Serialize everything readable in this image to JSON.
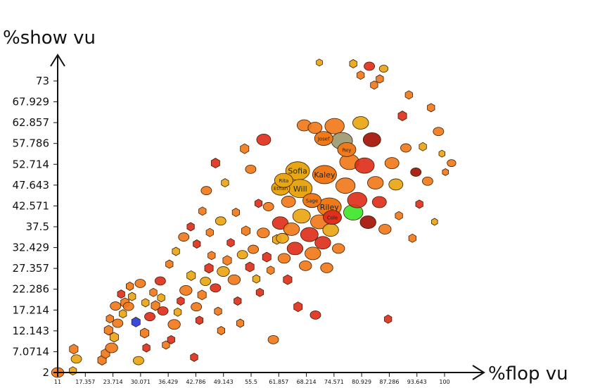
{
  "chart_data": {
    "type": "scatter",
    "xlabel": "%flop vu",
    "ylabel": "%show vu",
    "xlim": [
      11,
      104
    ],
    "ylim": [
      2,
      78
    ],
    "x_ticks": [
      "11",
      "17.357",
      "23.714",
      "30.071",
      "36.429",
      "42.786",
      "49.143",
      "55.5",
      "61.857",
      "68.214",
      "74.571",
      "80.929",
      "87.286",
      "93.643",
      "100"
    ],
    "y_ticks": [
      "2",
      "7.0714",
      "12.143",
      "17.214",
      "22.286",
      "27.357",
      "32.429",
      "37.5",
      "42.571",
      "47.643",
      "52.714",
      "57.786",
      "62.857",
      "67.929",
      "73"
    ],
    "colors": {
      "orange": "#f07a1a",
      "red": "#e0301c",
      "dark_red": "#a51208",
      "yellow": "#f2c418",
      "gold": "#e8a612",
      "blue": "#2a3bd8",
      "green": "#3ee62e",
      "olive": "#9c9a72",
      "outline": "#3a1a00"
    },
    "labeled_points": [
      {
        "x": 66.2,
        "y": 51.1,
        "label": "Sofia"
      },
      {
        "x": 72.4,
        "y": 50.2,
        "label": "Kaley"
      },
      {
        "x": 66.8,
        "y": 46.8,
        "label": "Will"
      },
      {
        "x": 73.5,
        "y": 42.3,
        "label": "Riley"
      },
      {
        "x": 72.2,
        "y": 59.0,
        "label": "Josef"
      },
      {
        "x": 62.3,
        "y": 46.9,
        "label": "Ethan"
      },
      {
        "x": 69.5,
        "y": 43.9,
        "label": "Sage"
      },
      {
        "x": 63.0,
        "y": 48.8,
        "label": "Rita"
      },
      {
        "x": 77.5,
        "y": 56.3,
        "label": "Rey"
      },
      {
        "x": 74.2,
        "y": 39.8,
        "label": "Cole"
      }
    ],
    "points": [
      {
        "x": 11,
        "y": 2,
        "c": "orange",
        "s": 7
      },
      {
        "x": 14.5,
        "y": 2.4,
        "c": "gold",
        "s": 6
      },
      {
        "x": 14.7,
        "y": 7.7,
        "c": "orange",
        "s": 7
      },
      {
        "x": 15.3,
        "y": 5.3,
        "c": "gold",
        "s": 6
      },
      {
        "x": 21.2,
        "y": 5.0,
        "c": "orange",
        "s": 7
      },
      {
        "x": 22.0,
        "y": 6.6,
        "c": "orange",
        "s": 7
      },
      {
        "x": 23.4,
        "y": 8.0,
        "c": "orange",
        "s": 7
      },
      {
        "x": 24.0,
        "y": 10.6,
        "c": "gold",
        "s": 7
      },
      {
        "x": 22.7,
        "y": 12.3,
        "c": "orange",
        "s": 7
      },
      {
        "x": 24.8,
        "y": 14.0,
        "c": "orange",
        "s": 6
      },
      {
        "x": 26.0,
        "y": 16.3,
        "c": "gold",
        "s": 6
      },
      {
        "x": 26.5,
        "y": 19.0,
        "c": "orange",
        "s": 7
      },
      {
        "x": 27.3,
        "y": 18.1,
        "c": "orange",
        "s": 6
      },
      {
        "x": 28.1,
        "y": 20.5,
        "c": "gold",
        "s": 6
      },
      {
        "x": 29.0,
        "y": 14.3,
        "c": "blue",
        "s": 7
      },
      {
        "x": 29.6,
        "y": 4.9,
        "c": "gold",
        "s": 6
      },
      {
        "x": 31.4,
        "y": 8.0,
        "c": "red",
        "s": 6
      },
      {
        "x": 31.0,
        "y": 11.6,
        "c": "orange",
        "s": 7
      },
      {
        "x": 32.2,
        "y": 15.6,
        "c": "red",
        "s": 6
      },
      {
        "x": 33.5,
        "y": 18.3,
        "c": "orange",
        "s": 7
      },
      {
        "x": 34.8,
        "y": 20.2,
        "c": "gold",
        "s": 6
      },
      {
        "x": 35.2,
        "y": 17.0,
        "c": "red",
        "s": 6
      },
      {
        "x": 35.9,
        "y": 8.7,
        "c": "orange",
        "s": 6
      },
      {
        "x": 37.1,
        "y": 10.0,
        "c": "red",
        "s": 6
      },
      {
        "x": 37.8,
        "y": 13.7,
        "c": "orange",
        "s": 7
      },
      {
        "x": 38.6,
        "y": 16.7,
        "c": "gold",
        "s": 6
      },
      {
        "x": 39.3,
        "y": 19.4,
        "c": "red",
        "s": 6
      },
      {
        "x": 40.5,
        "y": 22.0,
        "c": "orange",
        "s": 7
      },
      {
        "x": 41.7,
        "y": 25.6,
        "c": "gold",
        "s": 7
      },
      {
        "x": 42.4,
        "y": 5.7,
        "c": "red",
        "s": 6
      },
      {
        "x": 42.9,
        "y": 18.0,
        "c": "orange",
        "s": 6
      },
      {
        "x": 43.6,
        "y": 14.7,
        "c": "red",
        "s": 6
      },
      {
        "x": 44.2,
        "y": 20.9,
        "c": "orange",
        "s": 7
      },
      {
        "x": 45.0,
        "y": 24.2,
        "c": "gold",
        "s": 6
      },
      {
        "x": 45.8,
        "y": 27.4,
        "c": "red",
        "s": 7
      },
      {
        "x": 46.4,
        "y": 30.5,
        "c": "orange",
        "s": 6
      },
      {
        "x": 47.3,
        "y": 22.6,
        "c": "red",
        "s": 6
      },
      {
        "x": 47.9,
        "y": 16.9,
        "c": "orange",
        "s": 6
      },
      {
        "x": 48.6,
        "y": 12.2,
        "c": "orange",
        "s": 6
      },
      {
        "x": 49.1,
        "y": 26.6,
        "c": "gold",
        "s": 7
      },
      {
        "x": 50.0,
        "y": 29.3,
        "c": "orange",
        "s": 7
      },
      {
        "x": 50.8,
        "y": 33.6,
        "c": "red",
        "s": 6
      },
      {
        "x": 51.6,
        "y": 24.6,
        "c": "orange",
        "s": 7
      },
      {
        "x": 52.4,
        "y": 19.4,
        "c": "red",
        "s": 6
      },
      {
        "x": 53.0,
        "y": 14.0,
        "c": "orange",
        "s": 6
      },
      {
        "x": 53.5,
        "y": 30.7,
        "c": "gold",
        "s": 6
      },
      {
        "x": 54.3,
        "y": 36.5,
        "c": "orange",
        "s": 7
      },
      {
        "x": 55.2,
        "y": 27.7,
        "c": "red",
        "s": 7
      },
      {
        "x": 56.0,
        "y": 32.0,
        "c": "orange",
        "s": 6
      },
      {
        "x": 56.7,
        "y": 24.8,
        "c": "gold",
        "s": 6
      },
      {
        "x": 57.5,
        "y": 21.5,
        "c": "red",
        "s": 6
      },
      {
        "x": 58.3,
        "y": 36.0,
        "c": "orange",
        "s": 7
      },
      {
        "x": 59.1,
        "y": 30.1,
        "c": "red",
        "s": 7
      },
      {
        "x": 60.0,
        "y": 26.9,
        "c": "orange",
        "s": 6
      },
      {
        "x": 60.6,
        "y": 10.0,
        "c": "orange",
        "s": 6
      },
      {
        "x": 61.4,
        "y": 34.4,
        "c": "gold",
        "s": 7
      },
      {
        "x": 62.2,
        "y": 38.4,
        "c": "red",
        "s": 9
      },
      {
        "x": 63.1,
        "y": 29.8,
        "c": "orange",
        "s": 7
      },
      {
        "x": 63.9,
        "y": 24.6,
        "c": "red",
        "s": 7
      },
      {
        "x": 64.8,
        "y": 36.9,
        "c": "orange",
        "s": 9
      },
      {
        "x": 65.6,
        "y": 32.2,
        "c": "red",
        "s": 9
      },
      {
        "x": 66.3,
        "y": 18.0,
        "c": "red",
        "s": 7
      },
      {
        "x": 67.1,
        "y": 40.1,
        "c": "gold",
        "s": 10
      },
      {
        "x": 68.0,
        "y": 28.0,
        "c": "orange",
        "s": 7
      },
      {
        "x": 68.9,
        "y": 35.6,
        "c": "red",
        "s": 10
      },
      {
        "x": 69.7,
        "y": 31.0,
        "c": "orange",
        "s": 9
      },
      {
        "x": 70.3,
        "y": 16.0,
        "c": "red",
        "s": 6
      },
      {
        "x": 71.2,
        "y": 38.7,
        "c": "orange",
        "s": 10
      },
      {
        "x": 72.0,
        "y": 33.6,
        "c": "red",
        "s": 9
      },
      {
        "x": 72.9,
        "y": 27.5,
        "c": "orange",
        "s": 7
      },
      {
        "x": 73.8,
        "y": 36.7,
        "c": "gold",
        "s": 9
      },
      {
        "x": 74.7,
        "y": 62.0,
        "c": "orange",
        "s": 11
      },
      {
        "x": 75.6,
        "y": 32.2,
        "c": "orange",
        "s": 7
      },
      {
        "x": 76.4,
        "y": 58.4,
        "c": "olive",
        "s": 12
      },
      {
        "x": 77.2,
        "y": 47.5,
        "c": "orange",
        "s": 11
      },
      {
        "x": 78.1,
        "y": 53.3,
        "c": "orange",
        "s": 11
      },
      {
        "x": 79.0,
        "y": 41.0,
        "c": "green",
        "s": 11
      },
      {
        "x": 79.9,
        "y": 44.0,
        "c": "red",
        "s": 11
      },
      {
        "x": 80.7,
        "y": 62.8,
        "c": "gold",
        "s": 9
      },
      {
        "x": 81.6,
        "y": 52.4,
        "c": "red",
        "s": 11
      },
      {
        "x": 82.4,
        "y": 38.6,
        "c": "dark_red",
        "s": 9
      },
      {
        "x": 83.3,
        "y": 58.7,
        "c": "dark_red",
        "s": 10
      },
      {
        "x": 84.1,
        "y": 48.2,
        "c": "orange",
        "s": 9
      },
      {
        "x": 85.0,
        "y": 43.5,
        "c": "red",
        "s": 8
      },
      {
        "x": 86.3,
        "y": 36.9,
        "c": "orange",
        "s": 7
      },
      {
        "x": 87.0,
        "y": 15.0,
        "c": "red",
        "s": 6
      },
      {
        "x": 87.9,
        "y": 53.0,
        "c": "orange",
        "s": 8
      },
      {
        "x": 88.8,
        "y": 47.8,
        "c": "gold",
        "s": 8
      },
      {
        "x": 89.5,
        "y": 40.2,
        "c": "orange",
        "s": 6
      },
      {
        "x": 90.3,
        "y": 64.5,
        "c": "red",
        "s": 7
      },
      {
        "x": 91.1,
        "y": 56.7,
        "c": "orange",
        "s": 6
      },
      {
        "x": 91.8,
        "y": 69.6,
        "c": "orange",
        "s": 6
      },
      {
        "x": 92.6,
        "y": 34.7,
        "c": "orange",
        "s": 6
      },
      {
        "x": 93.4,
        "y": 50.8,
        "c": "dark_red",
        "s": 6
      },
      {
        "x": 94.2,
        "y": 43.0,
        "c": "red",
        "s": 6
      },
      {
        "x": 95.0,
        "y": 57.0,
        "c": "gold",
        "s": 6
      },
      {
        "x": 96.1,
        "y": 48.6,
        "c": "orange",
        "s": 6
      },
      {
        "x": 96.9,
        "y": 66.5,
        "c": "orange",
        "s": 6
      },
      {
        "x": 97.7,
        "y": 38.7,
        "c": "gold",
        "s": 5
      },
      {
        "x": 98.6,
        "y": 60.7,
        "c": "orange",
        "s": 6
      },
      {
        "x": 99.4,
        "y": 55.3,
        "c": "gold",
        "s": 5
      },
      {
        "x": 100.2,
        "y": 50.8,
        "c": "orange",
        "s": 5
      },
      {
        "x": 101.6,
        "y": 53.0,
        "c": "orange",
        "s": 5
      },
      {
        "x": 79.0,
        "y": 77.2,
        "c": "gold",
        "s": 6
      },
      {
        "x": 80.7,
        "y": 74.4,
        "c": "orange",
        "s": 6
      },
      {
        "x": 82.7,
        "y": 76.6,
        "c": "red",
        "s": 6
      },
      {
        "x": 83.8,
        "y": 72.0,
        "c": "orange",
        "s": 6
      },
      {
        "x": 85.1,
        "y": 73.5,
        "c": "orange",
        "s": 6
      },
      {
        "x": 86.0,
        "y": 76.0,
        "c": "gold",
        "s": 5
      },
      {
        "x": 71.2,
        "y": 77.5,
        "c": "gold",
        "s": 5
      },
      {
        "x": 54.0,
        "y": 56.5,
        "c": "orange",
        "s": 7
      },
      {
        "x": 55.4,
        "y": 51.5,
        "c": "orange",
        "s": 6
      },
      {
        "x": 49.5,
        "y": 48.2,
        "c": "gold",
        "s": 6
      },
      {
        "x": 47.3,
        "y": 53.0,
        "c": "red",
        "s": 7
      },
      {
        "x": 45.2,
        "y": 46.3,
        "c": "orange",
        "s": 6
      },
      {
        "x": 44.3,
        "y": 41.3,
        "c": "orange",
        "s": 6
      },
      {
        "x": 41.6,
        "y": 37.5,
        "c": "red",
        "s": 6
      },
      {
        "x": 40.0,
        "y": 35.0,
        "c": "orange",
        "s": 6
      },
      {
        "x": 38.2,
        "y": 31.5,
        "c": "gold",
        "s": 6
      },
      {
        "x": 36.7,
        "y": 28.4,
        "c": "orange",
        "s": 6
      },
      {
        "x": 34.6,
        "y": 24.3,
        "c": "red",
        "s": 6
      },
      {
        "x": 33.0,
        "y": 21.5,
        "c": "orange",
        "s": 6
      },
      {
        "x": 31.2,
        "y": 19.0,
        "c": "gold",
        "s": 6
      },
      {
        "x": 30.0,
        "y": 23.7,
        "c": "orange",
        "s": 6
      },
      {
        "x": 27.6,
        "y": 23.0,
        "c": "orange",
        "s": 6
      },
      {
        "x": 25.6,
        "y": 21.1,
        "c": "red",
        "s": 6
      },
      {
        "x": 24.3,
        "y": 18.2,
        "c": "orange",
        "s": 6
      },
      {
        "x": 23.0,
        "y": 15.1,
        "c": "orange",
        "s": 6
      },
      {
        "x": 58.4,
        "y": 58.7,
        "c": "red",
        "s": 8
      },
      {
        "x": 59.5,
        "y": 42.4,
        "c": "orange",
        "s": 6
      },
      {
        "x": 57.2,
        "y": 43.2,
        "c": "red",
        "s": 6
      },
      {
        "x": 52.0,
        "y": 41.0,
        "c": "orange",
        "s": 6
      },
      {
        "x": 48.5,
        "y": 38.9,
        "c": "gold",
        "s": 6
      },
      {
        "x": 46.0,
        "y": 36.1,
        "c": "orange",
        "s": 6
      },
      {
        "x": 43.0,
        "y": 33.3,
        "c": "red",
        "s": 6
      },
      {
        "x": 62.7,
        "y": 34.7,
        "c": "gold",
        "s": 7
      },
      {
        "x": 64.1,
        "y": 43.6,
        "c": "orange",
        "s": 8
      },
      {
        "x": 67.7,
        "y": 62.2,
        "c": "orange",
        "s": 8
      },
      {
        "x": 70.2,
        "y": 61.6,
        "c": "orange",
        "s": 8
      }
    ]
  }
}
